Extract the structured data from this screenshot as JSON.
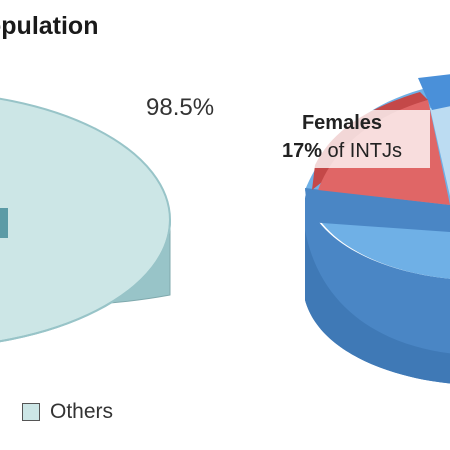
{
  "chart_data": [
    {
      "type": "pie",
      "title": "opulation",
      "slices": [
        {
          "label": "Others",
          "value": 98.5,
          "color": "#cce6e6"
        },
        {
          "label": "",
          "value": 1.5,
          "color": "#5b9ba6"
        }
      ],
      "data_labels": [
        "98.5%"
      ],
      "legend": [
        "Others"
      ],
      "legend_position": "bottom"
    },
    {
      "type": "pie",
      "slices": [
        {
          "label": "Females",
          "value": 17,
          "color": "#e06666"
        },
        {
          "label": "",
          "value": 83,
          "color": "#6fb0e6"
        }
      ],
      "annotation": {
        "title": "Females",
        "value_text": "17%",
        "suffix": " of INTJs"
      }
    }
  ],
  "colors": {
    "others_top": "#cce6e6",
    "others_side": "#98c4c8",
    "female_top": "#e06666",
    "female_side": "#c44848",
    "male_top": "#6fb0e6",
    "male_side": "#4a86c5",
    "male_light": "#bcdcf2"
  }
}
